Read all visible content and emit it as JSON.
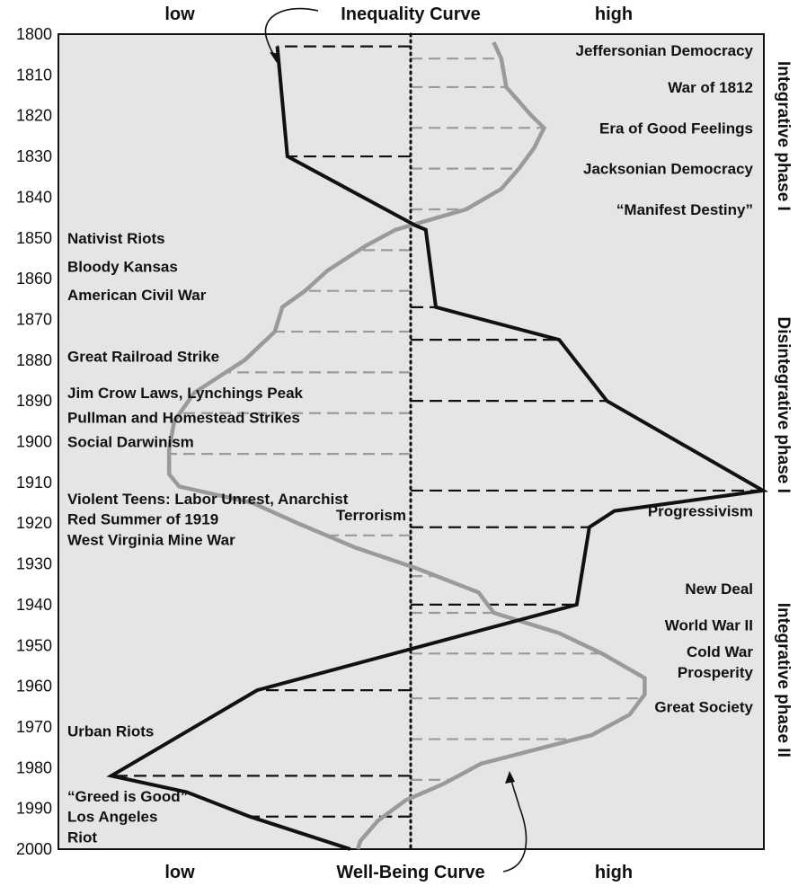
{
  "chart_data": {
    "type": "line",
    "orientation": "vertical-time",
    "x_axis": {
      "top_left_label": "low",
      "top_right_label": "high",
      "bottom_left_label": "low",
      "bottom_right_label": "high"
    },
    "y_axis": {
      "range": [
        1800,
        2000
      ],
      "ticks": [
        1800,
        1810,
        1820,
        1830,
        1840,
        1850,
        1860,
        1870,
        1880,
        1890,
        1900,
        1910,
        1920,
        1930,
        1940,
        1950,
        1960,
        1970,
        1980,
        1990,
        2000
      ]
    },
    "midline": {
      "style": "dotted"
    },
    "series": [
      {
        "name": "Inequality Curve",
        "color": "#111111",
        "label_position": "top",
        "points": [
          {
            "year": 1803,
            "level": -0.53
          },
          {
            "year": 1830,
            "level": -0.49
          },
          {
            "year": 1847,
            "level": 0.02
          },
          {
            "year": 1848,
            "level": 0.06
          },
          {
            "year": 1867,
            "level": 0.1
          },
          {
            "year": 1875,
            "level": 0.59
          },
          {
            "year": 1890,
            "level": 0.78
          },
          {
            "year": 1912,
            "level": 1.4
          },
          {
            "year": 1917,
            "level": 0.81
          },
          {
            "year": 1921,
            "level": 0.71
          },
          {
            "year": 1940,
            "level": 0.66
          },
          {
            "year": 1961,
            "level": -0.61
          },
          {
            "year": 1982,
            "level": -1.19
          },
          {
            "year": 1986,
            "level": -0.89
          },
          {
            "year": 1992,
            "level": -0.64
          },
          {
            "year": 2000,
            "level": -0.24
          }
        ]
      },
      {
        "name": "Well-Being Curve",
        "color": "#9a9a9a",
        "label_position": "bottom",
        "points": [
          {
            "year": 1802,
            "level": 0.33
          },
          {
            "year": 1806,
            "level": 0.36
          },
          {
            "year": 1813,
            "level": 0.38
          },
          {
            "year": 1820,
            "level": 0.48
          },
          {
            "year": 1823,
            "level": 0.53
          },
          {
            "year": 1828,
            "level": 0.49
          },
          {
            "year": 1833,
            "level": 0.43
          },
          {
            "year": 1838,
            "level": 0.36
          },
          {
            "year": 1843,
            "level": 0.22
          },
          {
            "year": 1848,
            "level": -0.06
          },
          {
            "year": 1852,
            "level": -0.18
          },
          {
            "year": 1858,
            "level": -0.33
          },
          {
            "year": 1863,
            "level": -0.42
          },
          {
            "year": 1867,
            "level": -0.51
          },
          {
            "year": 1873,
            "level": -0.54
          },
          {
            "year": 1880,
            "level": -0.66
          },
          {
            "year": 1888,
            "level": -0.86
          },
          {
            "year": 1895,
            "level": -0.94
          },
          {
            "year": 1902,
            "level": -0.96
          },
          {
            "year": 1908,
            "level": -0.96
          },
          {
            "year": 1911,
            "level": -0.92
          },
          {
            "year": 1915,
            "level": -0.63
          },
          {
            "year": 1920,
            "level": -0.45
          },
          {
            "year": 1926,
            "level": -0.22
          },
          {
            "year": 1931,
            "level": 0.02
          },
          {
            "year": 1937,
            "level": 0.27
          },
          {
            "year": 1942,
            "level": 0.33
          },
          {
            "year": 1947,
            "level": 0.59
          },
          {
            "year": 1952,
            "level": 0.76
          },
          {
            "year": 1958,
            "level": 0.93
          },
          {
            "year": 1962,
            "level": 0.93
          },
          {
            "year": 1967,
            "level": 0.87
          },
          {
            "year": 1972,
            "level": 0.72
          },
          {
            "year": 1979,
            "level": 0.28
          },
          {
            "year": 1984,
            "level": 0.13
          },
          {
            "year": 1988,
            "level": -0.02
          },
          {
            "year": 1993,
            "level": -0.13
          },
          {
            "year": 1998,
            "level": -0.2
          },
          {
            "year": 2000,
            "level": -0.21
          }
        ]
      }
    ],
    "inequality_connectors": [
      1803,
      1830,
      1867,
      1875,
      1890,
      1912,
      1921,
      1940,
      1961,
      1982,
      1992
    ],
    "wellbeing_connectors": [
      1806,
      1813,
      1823,
      1833,
      1843,
      1853,
      1863,
      1873,
      1883,
      1893,
      1903,
      1923,
      1933,
      1942,
      1952,
      1963,
      1973,
      1983,
      1992
    ],
    "phases": [
      {
        "label": "Integrative phase I",
        "from": 1800,
        "to": 1850
      },
      {
        "label": "Disintegrative phase I",
        "from": 1860,
        "to": 1922
      },
      {
        "label": "Integrative phase II",
        "from": 1932,
        "to": 1985
      }
    ],
    "annotations_right": [
      {
        "lines": [
          "Jeffersonian Democracy"
        ],
        "year": 1804
      },
      {
        "lines": [
          "War of 1812"
        ],
        "year": 1813
      },
      {
        "lines": [
          "Era of Good Feelings"
        ],
        "year": 1823
      },
      {
        "lines": [
          "Jacksonian Democracy"
        ],
        "year": 1833
      },
      {
        "lines": [
          "“Manifest Destiny”"
        ],
        "year": 1843
      },
      {
        "lines": [
          "Progressivism"
        ],
        "year": 1917
      },
      {
        "lines": [
          "New Deal"
        ],
        "year": 1936
      },
      {
        "lines": [
          "World War II"
        ],
        "year": 1945
      },
      {
        "lines": [
          "Cold War",
          "Prosperity"
        ],
        "year": 1954
      },
      {
        "lines": [
          "Great Society"
        ],
        "year": 1965
      }
    ],
    "annotations_left": [
      {
        "lines": [
          "Nativist Riots"
        ],
        "year": 1850
      },
      {
        "lines": [
          "Bloody Kansas"
        ],
        "year": 1857
      },
      {
        "lines": [
          "American Civil War"
        ],
        "year": 1864
      },
      {
        "lines": [
          "Great Railroad Strike"
        ],
        "year": 1879
      },
      {
        "lines": [
          "Jim Crow Laws, Lynchings Peak"
        ],
        "year": 1888
      },
      {
        "lines": [
          "Pullman and Homestead Strikes"
        ],
        "year": 1894
      },
      {
        "lines": [
          "Social Darwinism"
        ],
        "year": 1900
      },
      {
        "lines": [
          "Violent Teens: Labor Unrest, Anarchist"
        ],
        "year": 1914
      },
      {
        "lines": [
          "Red Summer of 1919"
        ],
        "year": 1919
      },
      {
        "lines": [
          "West Virginia Mine War"
        ],
        "year": 1924
      },
      {
        "lines": [
          "Urban Riots"
        ],
        "year": 1971
      },
      {
        "lines": [
          "“Greed is Good”"
        ],
        "year": 1987
      },
      {
        "lines": [
          "Los Angeles"
        ],
        "year": 1992
      },
      {
        "lines": [
          "Riot"
        ],
        "year": 1997
      }
    ],
    "annotation_center": {
      "lines": [
        "Terrorism"
      ],
      "year": 1918
    }
  }
}
